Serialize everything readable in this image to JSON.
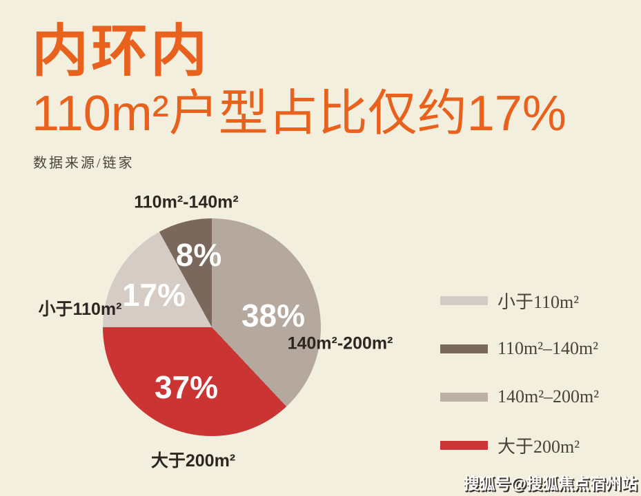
{
  "page": {
    "background_color": "#f2efde",
    "accent_color": "#e8621d",
    "label_text_color": "#2d2621"
  },
  "header": {
    "title": "内环内",
    "subtitle": "110m²户型占比仅约17%",
    "source": "数据来源/链家"
  },
  "watermark": {
    "text": "搜狐号@搜狐焦点宿州站"
  },
  "chart_data": {
    "type": "pie",
    "title": "内环内110m²户型占比仅约17%",
    "unit": "%",
    "direction": "clockwise",
    "start_angle_deg": 0,
    "legend_position": "right",
    "series": [
      {
        "name": "140m²-200m²",
        "value": 38,
        "percent_label": "38%",
        "color": "#b5a89e"
      },
      {
        "name": "大于200m²",
        "value": 37,
        "percent_label": "37%",
        "color": "#ca3534"
      },
      {
        "name": "小于110m²",
        "value": 17,
        "percent_label": "17%",
        "color": "#d4ccc5"
      },
      {
        "name": "110m²-140m²",
        "value": 8,
        "percent_label": "8%",
        "color": "#7b685d"
      }
    ],
    "legend": [
      {
        "label": "小于110m²",
        "color": "#d3ccc6"
      },
      {
        "label": "110m²–140m²",
        "color": "#7a685d"
      },
      {
        "label": "140m²–200m²",
        "color": "#bcb0a6"
      },
      {
        "label": "大于200m²",
        "color": "#ca3636"
      }
    ]
  }
}
